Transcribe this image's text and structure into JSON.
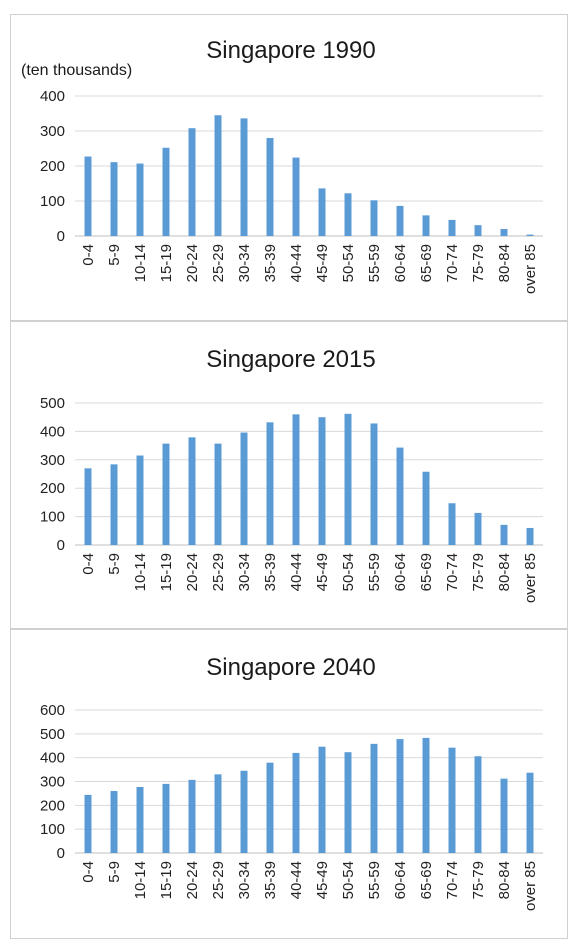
{
  "chart_data": [
    {
      "type": "bar",
      "title": "Singapore 1990",
      "unit_label": "(ten thousands)",
      "categories": [
        "0-4",
        "5-9",
        "10-14",
        "15-19",
        "20-24",
        "25-29",
        "30-34",
        "35-39",
        "40-44",
        "45-49",
        "50-54",
        "55-59",
        "60-64",
        "65-69",
        "70-74",
        "75-79",
        "80-84",
        "over 85"
      ],
      "values": [
        227,
        211,
        207,
        252,
        308,
        345,
        336,
        280,
        224,
        136,
        122,
        102,
        86,
        59,
        46,
        31,
        20,
        4
      ],
      "ylim": [
        0,
        400
      ],
      "yticks": [
        0,
        100,
        200,
        300,
        400
      ],
      "grid": true,
      "color": "#5b9bd5"
    },
    {
      "type": "bar",
      "title": "Singapore 2015",
      "categories": [
        "0-4",
        "5-9",
        "10-14",
        "15-19",
        "20-24",
        "25-29",
        "30-34",
        "35-39",
        "40-44",
        "45-49",
        "50-54",
        "55-59",
        "60-64",
        "65-69",
        "70-74",
        "75-79",
        "80-84",
        "over 85"
      ],
      "values": [
        270,
        284,
        315,
        357,
        379,
        357,
        396,
        432,
        460,
        450,
        462,
        428,
        343,
        258,
        147,
        113,
        71,
        60
      ],
      "ylim": [
        0,
        500
      ],
      "yticks": [
        0,
        100,
        200,
        300,
        400,
        500
      ],
      "grid": true,
      "color": "#5b9bd5"
    },
    {
      "type": "bar",
      "title": "Singapore 2040",
      "categories": [
        "0-4",
        "5-9",
        "10-14",
        "15-19",
        "20-24",
        "25-29",
        "30-34",
        "35-39",
        "40-44",
        "45-49",
        "50-54",
        "55-59",
        "60-64",
        "65-69",
        "70-74",
        "75-79",
        "80-84",
        "over 85"
      ],
      "values": [
        244,
        260,
        277,
        290,
        307,
        330,
        345,
        379,
        420,
        446,
        423,
        458,
        478,
        483,
        442,
        406,
        312,
        337
      ],
      "ylim": [
        0,
        600
      ],
      "yticks": [
        0,
        100,
        200,
        300,
        400,
        500,
        600
      ],
      "grid": true,
      "color": "#5b9bd5"
    }
  ]
}
